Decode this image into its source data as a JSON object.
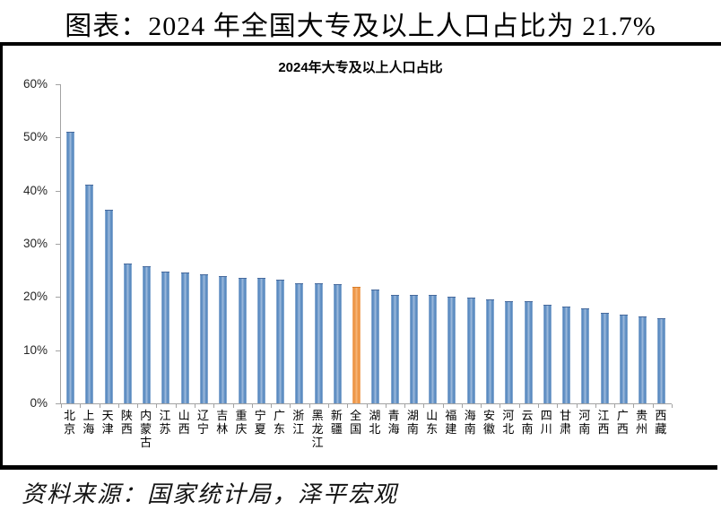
{
  "page": {
    "title": "图表：2024 年全国大专及以上人口占比为 21.7%",
    "source_note": "资料来源：国家统计局，泽平宏观"
  },
  "chart_data": {
    "type": "bar",
    "title": "2024年大专及以上人口占比",
    "categories": [
      "北京",
      "上海",
      "天津",
      "陕西",
      "内蒙古",
      "江苏",
      "山西",
      "辽宁",
      "吉林",
      "重庆",
      "宁夏",
      "广东",
      "浙江",
      "黑龙江",
      "新疆",
      "全国",
      "湖北",
      "青海",
      "湖南",
      "山东",
      "福建",
      "海南",
      "安徽",
      "河北",
      "云南",
      "四川",
      "甘肃",
      "河南",
      "江西",
      "广西",
      "贵州",
      "西藏"
    ],
    "values": [
      50.9,
      40.9,
      36.2,
      26.2,
      25.6,
      24.6,
      24.5,
      24.1,
      23.7,
      23.4,
      23.4,
      23.1,
      22.4,
      22.4,
      22.3,
      21.7,
      21.3,
      20.3,
      20.3,
      20.2,
      19.9,
      19.7,
      19.4,
      19.1,
      19.0,
      18.4,
      18.0,
      17.7,
      16.9,
      16.6,
      16.2,
      15.9
    ],
    "highlight_category": "全国",
    "highlight_value": 21.7,
    "xlabel": "",
    "ylabel": "",
    "ylim": [
      0,
      60
    ],
    "ytick_step": 10,
    "ytick_labels": [
      "0%",
      "10%",
      "20%",
      "30%",
      "40%",
      "50%",
      "60%"
    ],
    "grid": false,
    "legend": "none",
    "bar_color": "#4f81bd",
    "highlight_color": "#f79646",
    "axis_color": "#a3a3a3"
  }
}
